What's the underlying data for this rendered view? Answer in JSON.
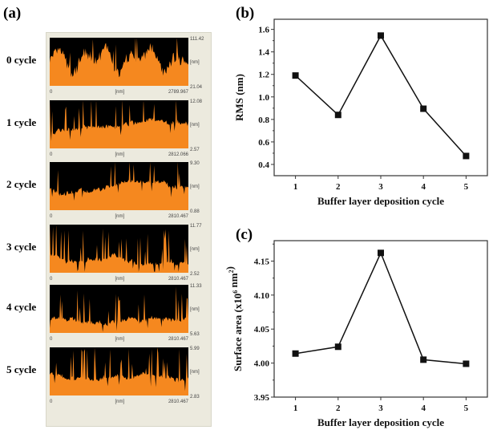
{
  "panels": {
    "a": "(a)",
    "b": "(b)",
    "c": "(c)"
  },
  "colors": {
    "profile_fill": "#f5881f",
    "profile_bg": "#000000",
    "line": "#111111"
  },
  "profiles": [
    {
      "label": "0 cycle",
      "z_max": "111.42",
      "z_min": "21.04",
      "x_start": "0",
      "x_end": "2789.967",
      "unit": "[nm]"
    },
    {
      "label": "1 cycle",
      "z_max": "12.08",
      "z_min": "2.57",
      "x_start": "0",
      "x_end": "2812.066",
      "unit": "[nm]"
    },
    {
      "label": "2 cycle",
      "z_max": "9.30",
      "z_min": "0.88",
      "x_start": "0",
      "x_end": "2810.467",
      "unit": "[nm]"
    },
    {
      "label": "3 cycle",
      "z_max": "11.77",
      "z_min": "2.52",
      "x_start": "0",
      "x_end": "2810.467",
      "unit": "[nm]"
    },
    {
      "label": "4 cycle",
      "z_max": "11.33",
      "z_min": "5.63",
      "x_start": "0",
      "x_end": "2810.467",
      "unit": "[nm]"
    },
    {
      "label": "5 cycle",
      "z_max": "5.99",
      "z_min": "2.83",
      "x_start": "0",
      "x_end": "2810.467",
      "unit": "[nm]"
    }
  ],
  "chart_data": [
    {
      "id": "b",
      "type": "line",
      "x": [
        1,
        2,
        3,
        4,
        5
      ],
      "values": [
        1.19,
        0.84,
        1.545,
        0.895,
        0.475
      ],
      "xlabel": "Buffer layer deposition cycle",
      "ylabel": "RMS (nm)",
      "xlim": [
        0.5,
        5.5
      ],
      "ylim": [
        0.3,
        1.69
      ],
      "xticks": [
        "1",
        "2",
        "3",
        "4",
        "5"
      ],
      "yticks": [
        "0.4",
        "0.6",
        "0.8",
        "1.0",
        "1.2",
        "1.4",
        "1.6"
      ],
      "marker": "square",
      "grid": false
    },
    {
      "id": "c",
      "type": "line",
      "x": [
        1,
        2,
        3,
        4,
        5
      ],
      "values": [
        4.014,
        4.024,
        4.162,
        4.005,
        3.999
      ],
      "xlabel": "Buffer layer deposition cycle",
      "ylabel": "Surface area (x10",
      "ylabel_sup1": "6",
      "ylabel_mid": " nm",
      "ylabel_sup2": "2",
      "ylabel_end": ")",
      "xlim": [
        0.5,
        5.5
      ],
      "ylim": [
        3.95,
        4.18
      ],
      "xticks": [
        "1",
        "2",
        "3",
        "4",
        "5"
      ],
      "yticks": [
        "3.95",
        "4.00",
        "4.05",
        "4.10",
        "4.15"
      ],
      "marker": "square",
      "grid": false
    }
  ]
}
